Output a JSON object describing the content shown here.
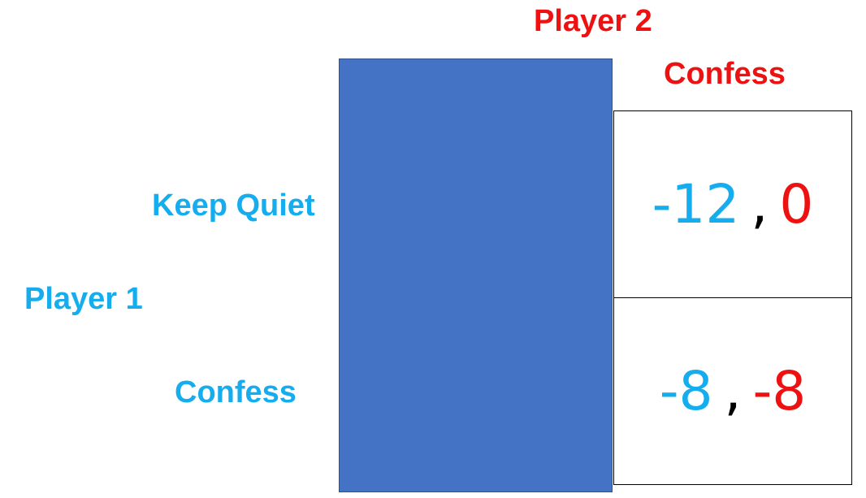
{
  "player2": {
    "label": "Player 2",
    "strategies": [
      "Confess"
    ]
  },
  "player1": {
    "label": "Player 1",
    "strategies": [
      "Keep Quiet",
      "Confess"
    ]
  },
  "payoffs": [
    {
      "p1": "-12",
      "separator": ",",
      "p2": "0"
    },
    {
      "p1": "-8",
      "separator": ",",
      "p2": "-8"
    }
  ],
  "colors": {
    "player1": "#16adef",
    "player2": "#ee1111",
    "hidden_block": "#4472c4",
    "separator": "#000000"
  }
}
